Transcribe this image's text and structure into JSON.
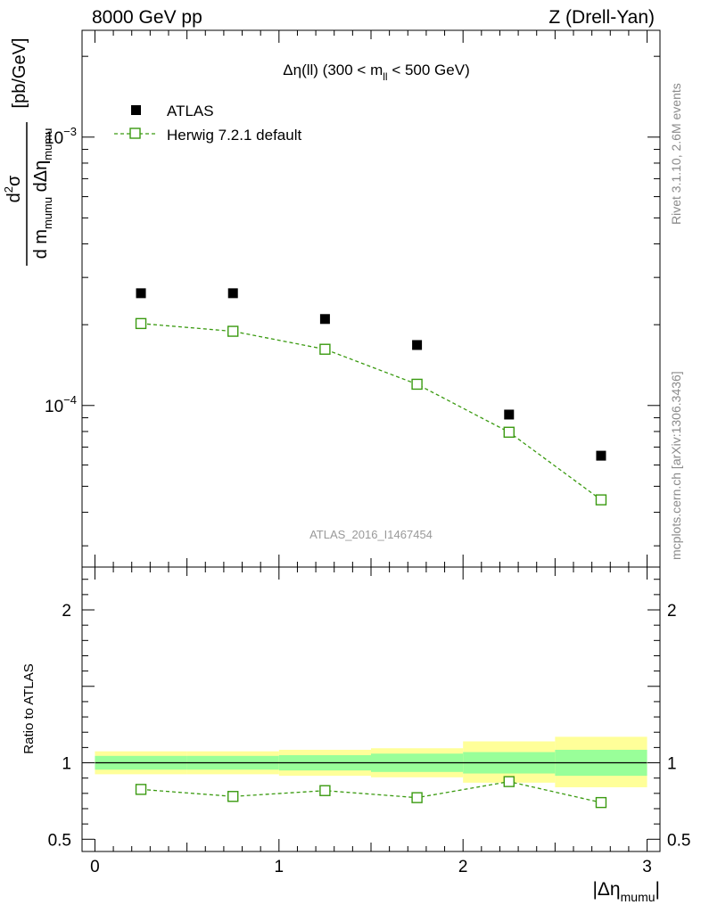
{
  "header": {
    "left": "8000 GeV pp",
    "right": "Z (Drell-Yan)"
  },
  "side_labels": {
    "rivet": "Rivet 3.1.10,  2.6M events",
    "mcplots": "mcplots.cern.ch [arXiv:1306.3436]"
  },
  "watermark": "ATLAS_2016_I1467454",
  "colors": {
    "data": "#000000",
    "mc": "#3a9a10",
    "band_inner": "#99ff99",
    "band_outer": "#ffff99"
  },
  "chart_data": [
    {
      "type": "scatter",
      "title": "Δη(ll) (300 < m_ll < 500 GeV)",
      "title_parts": {
        "main": "Δη(ll) (300 < m",
        "sub": "ll",
        "tail": " < 500 GeV)"
      },
      "ylabel": "d²σ / (d m_mumu dΔη_mumu) [pb/GeV]",
      "ylabel_parts": {
        "num": "d",
        "num_sup": "2",
        "num_tail": "σ",
        "den1": "d m",
        "den1_sub": "mumu",
        "den2": " dΔη",
        "den2_sub": "mumu",
        "unit": "[pb/GeV]"
      },
      "yscale": "log",
      "ylim": [
        2.5e-05,
        0.0025
      ],
      "xlim": [
        -0.07,
        3.07
      ],
      "y_tick_labels": [
        {
          "value": 0.001,
          "base": "10",
          "exp": "−3"
        },
        {
          "value": 0.0001,
          "base": "10",
          "exp": "−4"
        }
      ],
      "legend_position": "top-left",
      "legend": [
        "ATLAS",
        "Herwig 7.2.1 default"
      ],
      "series": [
        {
          "name": "ATLAS",
          "marker": "filled-square",
          "x": [
            0.25,
            0.75,
            1.25,
            1.75,
            2.25,
            2.75
          ],
          "y": [
            0.000262,
            0.000262,
            0.00021,
            0.000168,
            9.25e-05,
            6.5e-05
          ]
        },
        {
          "name": "Herwig 7.2.1 default",
          "marker": "open-square",
          "line": "dashed",
          "x": [
            0.25,
            0.75,
            1.25,
            1.75,
            2.25,
            2.75
          ],
          "y": [
            0.000202,
            0.000189,
            0.000162,
            0.00012,
            7.95e-05,
            4.45e-05
          ]
        }
      ]
    },
    {
      "type": "scatter",
      "ylabel": "Ratio to ATLAS",
      "xlabel": "|Δη_mumu|",
      "xlabel_parts": {
        "main": "|Δη",
        "sub": "mumu",
        "tail": "|"
      },
      "ylim": [
        0.42,
        2.28
      ],
      "xlim": [
        -0.07,
        3.07
      ],
      "x_tick_labels": [
        0,
        1,
        2,
        3
      ],
      "y_tick_labels": [
        0.5,
        1,
        2
      ],
      "reference_line": 1,
      "bands": {
        "x_edges": [
          0,
          0.5,
          1,
          1.5,
          2,
          2.5,
          3
        ],
        "inner_lo": [
          0.955,
          0.955,
          0.95,
          0.94,
          0.93,
          0.915
        ],
        "inner_hi": [
          1.045,
          1.045,
          1.05,
          1.06,
          1.07,
          1.085
        ],
        "outer_lo": [
          0.925,
          0.925,
          0.915,
          0.905,
          0.87,
          0.84
        ],
        "outer_hi": [
          1.075,
          1.075,
          1.085,
          1.095,
          1.14,
          1.17
        ]
      },
      "series": [
        {
          "name": "Herwig 7.2.1 default",
          "marker": "open-square",
          "line": "dashed",
          "x": [
            0.25,
            0.75,
            1.25,
            1.75,
            2.25,
            2.75
          ],
          "y": [
            0.826,
            0.78,
            0.818,
            0.772,
            0.877,
            0.74
          ]
        }
      ]
    }
  ]
}
